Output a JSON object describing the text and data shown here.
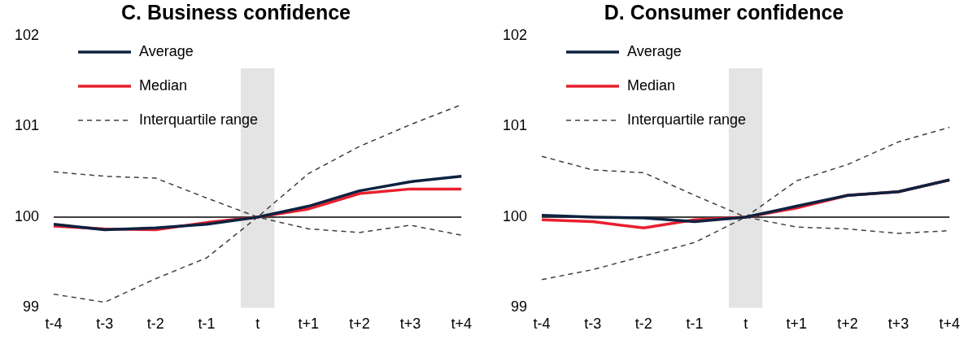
{
  "chart_data": [
    {
      "type": "line",
      "title": "C. Business confidence",
      "categories": [
        "t-4",
        "t-3",
        "t-2",
        "t-1",
        "t",
        "t+1",
        "t+2",
        "t+3",
        "t+4"
      ],
      "series": [
        {
          "name": "Average",
          "color": "#0d2240",
          "values": [
            99.92,
            99.86,
            99.88,
            99.92,
            100,
            100.12,
            100.29,
            100.39,
            100.45
          ]
        },
        {
          "name": "Median",
          "color": "#e8202e",
          "values": [
            99.9,
            99.87,
            99.86,
            99.94,
            100,
            100.09,
            100.26,
            100.31,
            100.31
          ]
        },
        {
          "name": "Interquartile range",
          "color": "#404040",
          "line_style": "dashed",
          "values": [
            100.5,
            100.45,
            100.43,
            100.21,
            100,
            100.48,
            100.78,
            101.02,
            101.24
          ]
        },
        {
          "color": "#404040",
          "line_style": "dashed",
          "values": [
            99.15,
            99.06,
            99.32,
            99.55,
            100,
            99.87,
            99.83,
            99.91,
            99.8
          ]
        }
      ],
      "ylim": [
        99,
        102
      ],
      "yticks": [
        99,
        100,
        101,
        102
      ],
      "ref_lines": [
        {
          "axis": "y",
          "value": 100,
          "color": "#000000"
        }
      ],
      "bands": [
        {
          "axis": "x",
          "from": "t",
          "to": "t",
          "color": "#e4e4e4"
        }
      ],
      "legend": "top left"
    },
    {
      "type": "line",
      "title": "D. Consumer confidence",
      "categories": [
        "t-4",
        "t-3",
        "t-2",
        "t-1",
        "t",
        "t+1",
        "t+2",
        "t+3",
        "t+4"
      ],
      "series": [
        {
          "name": "Average",
          "color": "#0d2240",
          "values": [
            100.02,
            100,
            99.99,
            99.95,
            100,
            100.12,
            100.24,
            100.28,
            100.41
          ]
        },
        {
          "name": "Median",
          "color": "#e8202e",
          "values": [
            99.97,
            99.95,
            99.88,
            99.97,
            100,
            100.1,
            100.24,
            100.28,
            100.41
          ]
        },
        {
          "name": "Interquartile range",
          "color": "#404040",
          "line_style": "dashed",
          "values": [
            100.67,
            100.52,
            100.49,
            100.24,
            100,
            100.4,
            100.58,
            100.83,
            100.99
          ]
        },
        {
          "color": "#404040",
          "line_style": "dashed",
          "values": [
            99.31,
            99.42,
            99.57,
            99.72,
            100,
            99.89,
            99.87,
            99.82,
            99.85
          ]
        }
      ],
      "ylim": [
        99,
        102
      ],
      "yticks": [
        99,
        100,
        101,
        102
      ],
      "ref_lines": [
        {
          "axis": "y",
          "value": 100,
          "color": "#000000"
        }
      ],
      "bands": [
        {
          "axis": "x",
          "from": "t",
          "to": "t",
          "color": "#e4e4e4"
        }
      ],
      "legend": "top left"
    }
  ]
}
